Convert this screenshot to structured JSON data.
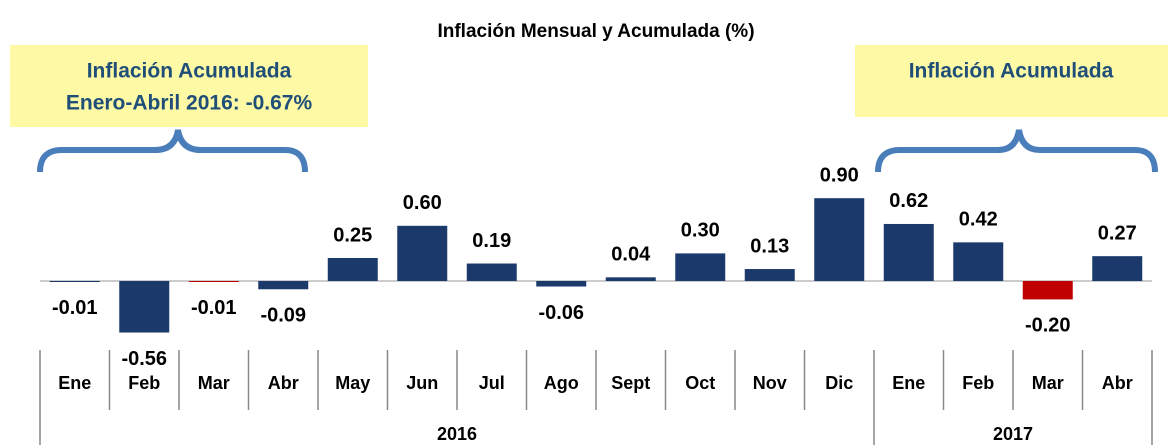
{
  "chart_data": {
    "type": "bar",
    "title": "Inflación Mensual y Acumulada (%)",
    "groups": [
      {
        "label": "2016",
        "categories": [
          "Ene",
          "Feb",
          "Mar",
          "Abr",
          "May",
          "Jun",
          "Jul",
          "Ago",
          "Sept",
          "Oct",
          "Nov",
          "Dic"
        ]
      },
      {
        "label": "2017",
        "categories": [
          "Ene",
          "Feb",
          "Mar",
          "Abr"
        ]
      }
    ],
    "values": [
      -0.01,
      -0.56,
      -0.01,
      -0.09,
      0.25,
      0.6,
      0.19,
      -0.06,
      0.04,
      0.3,
      0.13,
      0.9,
      0.62,
      0.42,
      -0.2,
      0.27
    ],
    "value_labels": [
      "-0.01",
      "-0.56",
      "-0.01",
      "-0.09",
      "0.25",
      "0.60",
      "0.19",
      "-0.06",
      "0.04",
      "0.30",
      "0.13",
      "0.90",
      "0.62",
      "0.42",
      "-0.20",
      "0.27"
    ],
    "colors": [
      "#1b3a6b",
      "#1b3a6b",
      "#c00000",
      "#1b3a6b",
      "#1b3a6b",
      "#1b3a6b",
      "#1b3a6b",
      "#1b3a6b",
      "#1b3a6b",
      "#1b3a6b",
      "#1b3a6b",
      "#1b3a6b",
      "#1b3a6b",
      "#1b3a6b",
      "#c00000",
      "#1b3a6b"
    ],
    "annotations": [
      {
        "lines": [
          "Inflación Acumulada",
          "Enero-Abril 2016: -0.67%"
        ]
      },
      {
        "lines": [
          "Inflación Acumulada"
        ]
      }
    ]
  }
}
